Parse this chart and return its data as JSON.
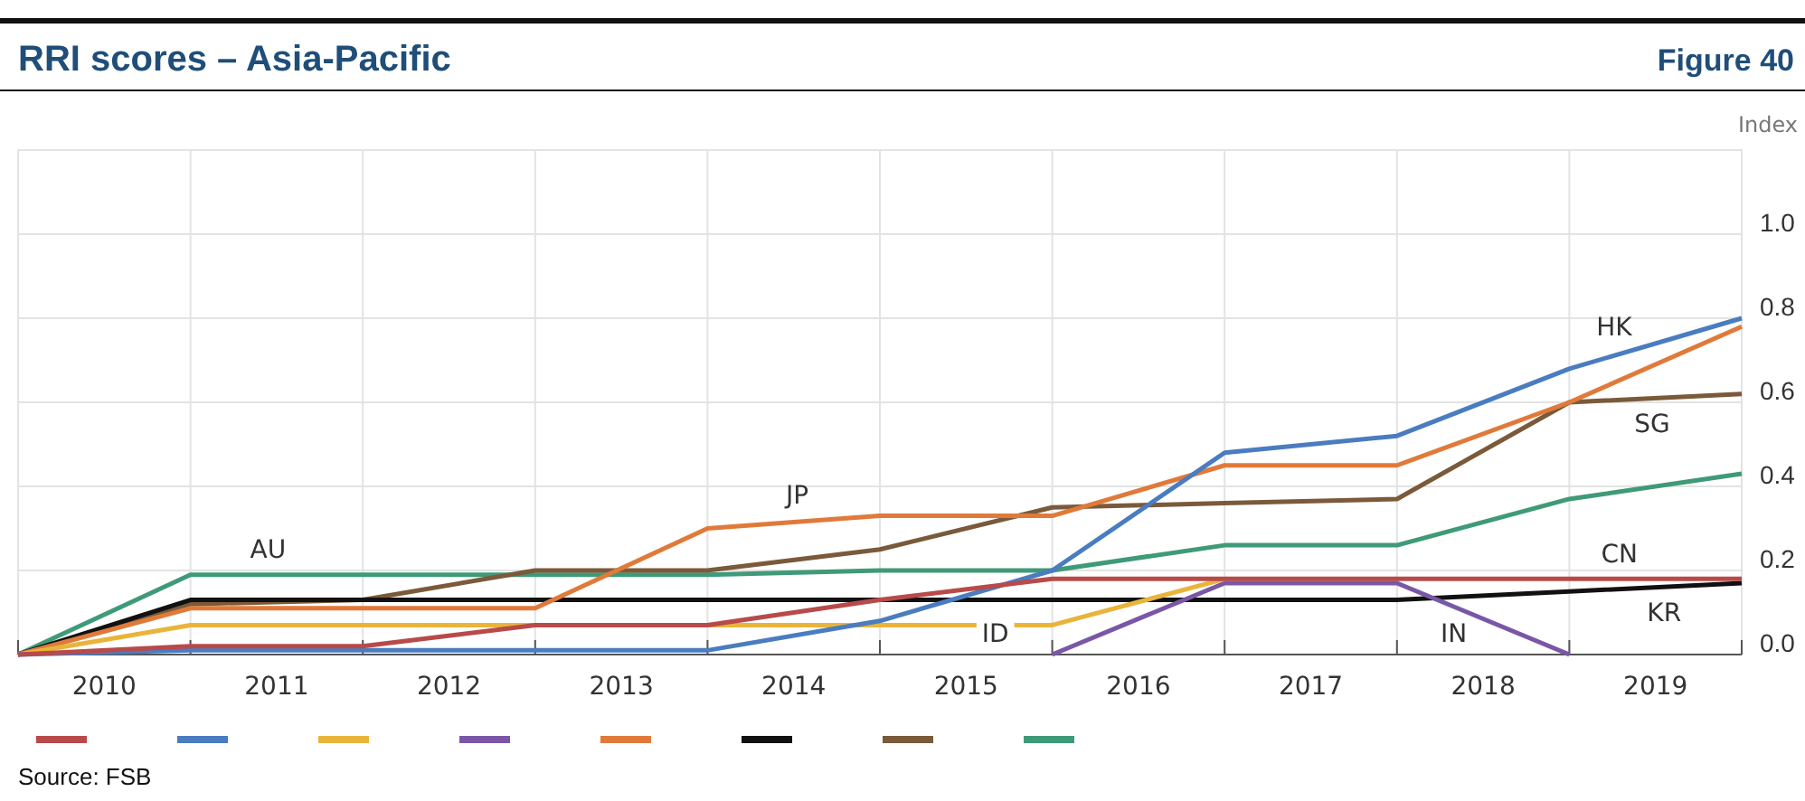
{
  "chart_data": {
    "type": "line",
    "title": "RRI scores – Asia-Pacific",
    "subtitle": "Figure 40",
    "ylabel": "Index",
    "x": [
      2010,
      2011,
      2012,
      2013,
      2014,
      2015,
      2016,
      2017,
      2018,
      2019,
      2020
    ],
    "xlim": [
      2010,
      2020
    ],
    "xticks": [
      {
        "value": 2010,
        "label": null
      },
      {
        "value": 2010.5,
        "label": "2010"
      },
      {
        "value": 2011,
        "label": null
      },
      {
        "value": 2011.5,
        "label": "2011"
      },
      {
        "value": 2012,
        "label": null
      },
      {
        "value": 2012.5,
        "label": "2012"
      },
      {
        "value": 2013,
        "label": null
      },
      {
        "value": 2013.5,
        "label": "2013"
      },
      {
        "value": 2014,
        "label": null
      },
      {
        "value": 2014.5,
        "label": "2014"
      },
      {
        "value": 2015,
        "label": null
      },
      {
        "value": 2015.5,
        "label": "2015"
      },
      {
        "value": 2016,
        "label": null
      },
      {
        "value": 2016.5,
        "label": "2016"
      },
      {
        "value": 2017,
        "label": null
      },
      {
        "value": 2017.5,
        "label": "2017"
      },
      {
        "value": 2018,
        "label": null
      },
      {
        "value": 2018.5,
        "label": "2018"
      },
      {
        "value": 2019,
        "label": null
      },
      {
        "value": 2019.5,
        "label": "2019"
      },
      {
        "value": 2020,
        "label": null
      }
    ],
    "ylim": [
      0,
      1.2
    ],
    "yticks": [
      {
        "value": 0,
        "label": "0.0"
      },
      {
        "value": 0.2,
        "label": "0.2"
      },
      {
        "value": 0.4,
        "label": "0.4"
      },
      {
        "value": 0.6,
        "label": "0.6"
      },
      {
        "value": 0.8,
        "label": "0.8"
      },
      {
        "value": 1,
        "label": "1.0"
      },
      {
        "value": 1.2,
        "label": null
      }
    ],
    "grid": true,
    "legend": "bottom",
    "marker": "none",
    "line_style": "solid",
    "series": [
      {
        "name": "AU",
        "color": "#3f9a78",
        "values": [
          0,
          0.19,
          0.19,
          0.19,
          0.19,
          0.2,
          0.2,
          0.26,
          0.26,
          0.37,
          0.43
        ]
      },
      {
        "name": "SG",
        "color": "#7a5a3a",
        "values": [
          0,
          0.12,
          0.13,
          0.2,
          0.2,
          0.25,
          0.35,
          0.36,
          0.37,
          0.6,
          0.62
        ]
      },
      {
        "name": "KR",
        "color": "#111111",
        "values": [
          0,
          0.13,
          0.13,
          0.13,
          0.13,
          0.13,
          0.13,
          0.13,
          0.13,
          0.15,
          0.17
        ]
      },
      {
        "name": "JP",
        "color": "#e07a3a",
        "values": [
          0,
          0.11,
          0.11,
          0.11,
          0.3,
          0.33,
          0.33,
          0.45,
          0.45,
          0.6,
          0.78
        ]
      },
      {
        "name": "IN",
        "color": "#7a57a6",
        "values": [
          null,
          null,
          null,
          null,
          null,
          null,
          0,
          0.17,
          0.17,
          0,
          null
        ]
      },
      {
        "name": "ID",
        "color": "#e8b53a",
        "values": [
          0,
          0.07,
          0.07,
          0.07,
          0.07,
          0.07,
          0.07,
          0.18,
          null,
          null,
          null
        ]
      },
      {
        "name": "HK",
        "color": "#4a7cc0",
        "values": [
          0,
          0.01,
          0.01,
          0.01,
          0.01,
          0.08,
          0.2,
          0.48,
          0.52,
          0.68,
          0.8
        ]
      },
      {
        "name": "CN",
        "color": "#b84a4a",
        "values": [
          0,
          0.02,
          0.02,
          0.07,
          0.07,
          0.13,
          0.18,
          0.18,
          0.18,
          0.18,
          0.18
        ]
      }
    ],
    "annotations": [
      "Source: FSB"
    ]
  }
}
